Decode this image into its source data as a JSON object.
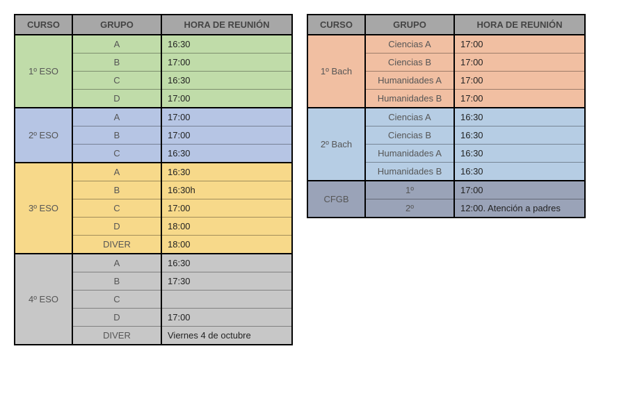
{
  "columns": {
    "curso": "CURSO",
    "grupo": "GRUPO",
    "hora": "HORA DE REUNIÓN"
  },
  "colors": {
    "header_bg": "#a7a7a7",
    "eso1": "#c0dca9",
    "eso2": "#b6c5e4",
    "eso3": "#f7d98a",
    "eso4": "#c7c7c7",
    "bach1": "#f1bfa2",
    "bach2": "#b6cde4",
    "cfgb": "#9aa3b8"
  },
  "left_blocks": [
    {
      "curso": "1º ESO",
      "color_key": "eso1",
      "rows": [
        {
          "grupo": "A",
          "hora": "16:30"
        },
        {
          "grupo": "B",
          "hora": "17:00"
        },
        {
          "grupo": "C",
          "hora": "16:30"
        },
        {
          "grupo": "D",
          "hora": "17:00"
        }
      ]
    },
    {
      "curso": "2º ESO",
      "color_key": "eso2",
      "rows": [
        {
          "grupo": "A",
          "hora": "17:00"
        },
        {
          "grupo": "B",
          "hora": "17:00"
        },
        {
          "grupo": "C",
          "hora": "16:30"
        }
      ]
    },
    {
      "curso": "3º ESO",
      "color_key": "eso3",
      "rows": [
        {
          "grupo": "A",
          "hora": "16:30"
        },
        {
          "grupo": "B",
          "hora": "16:30h"
        },
        {
          "grupo": "C",
          "hora": "17:00"
        },
        {
          "grupo": "D",
          "hora": "18:00"
        },
        {
          "grupo": "DIVER",
          "hora": "18:00"
        }
      ]
    },
    {
      "curso": "4º ESO",
      "color_key": "eso4",
      "rows": [
        {
          "grupo": "A",
          "hora": "16:30"
        },
        {
          "grupo": "B",
          "hora": "17:30"
        },
        {
          "grupo": "C",
          "hora": ""
        },
        {
          "grupo": "D",
          "hora": "17:00"
        },
        {
          "grupo": "DIVER",
          "hora": "Viernes 4 de octubre"
        }
      ]
    }
  ],
  "right_blocks": [
    {
      "curso": "1º Bach",
      "color_key": "bach1",
      "rows": [
        {
          "grupo": "Ciencias A",
          "hora": "17:00"
        },
        {
          "grupo": "Ciencias B",
          "hora": "17:00"
        },
        {
          "grupo": "Humanidades A",
          "hora": "17:00"
        },
        {
          "grupo": "Humanidades B",
          "hora": "17:00"
        }
      ]
    },
    {
      "curso": "2º Bach",
      "color_key": "bach2",
      "rows": [
        {
          "grupo": "Ciencias A",
          "hora": "16:30"
        },
        {
          "grupo": "Ciencias B",
          "hora": "16:30"
        },
        {
          "grupo": "Humanidades A",
          "hora": "16:30"
        },
        {
          "grupo": "Humanidades B",
          "hora": "16:30"
        }
      ]
    },
    {
      "curso": "CFGB",
      "color_key": "cfgb",
      "rows": [
        {
          "grupo": "1º",
          "hora": "17:00"
        },
        {
          "grupo": "2º",
          "hora": "12:00. Atención a padres"
        }
      ]
    }
  ]
}
